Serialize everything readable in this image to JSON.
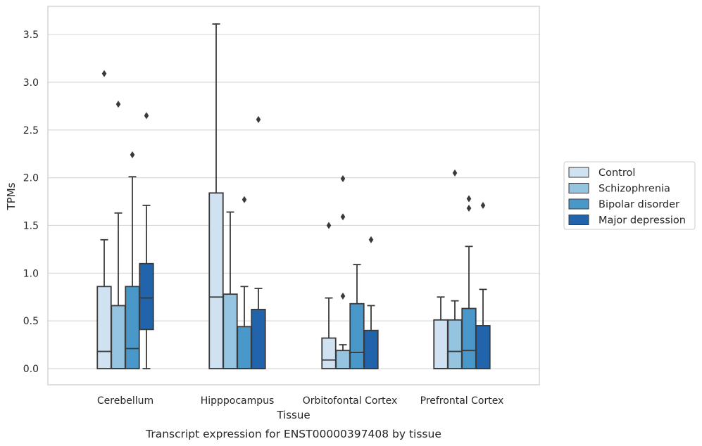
{
  "chart_data": {
    "type": "box",
    "caption": "Transcript expression for ENST00000397408 by tissue",
    "xlabel": "Tissue",
    "ylabel": "TPMs",
    "ylim": [
      -0.18,
      3.78
    ],
    "yticks": [
      "0.0",
      "0.5",
      "1.0",
      "1.5",
      "2.0",
      "2.5",
      "3.0",
      "3.5"
    ],
    "grid": "horizontal",
    "legend_position": "right",
    "categories": [
      "Cerebellum",
      "Hipppocampus",
      "Orbitofontal Cortex",
      "Prefrontal Cortex"
    ],
    "series": [
      {
        "name": "Control",
        "color": "#d0e1f2",
        "boxes": [
          {
            "whisker_low": 0,
            "q1": 0,
            "median": 0.18,
            "q3": 0.86,
            "whisker_high": 1.35,
            "outliers": [
              3.09
            ]
          },
          {
            "whisker_low": 0,
            "q1": 0,
            "median": 0.75,
            "q3": 1.84,
            "whisker_high": 3.61,
            "outliers": []
          },
          {
            "whisker_low": 0,
            "q1": 0,
            "median": 0.09,
            "q3": 0.32,
            "whisker_high": 0.74,
            "outliers": [
              1.5
            ]
          },
          {
            "whisker_low": 0,
            "q1": 0,
            "median": 0,
            "q3": 0.51,
            "whisker_high": 0.75,
            "outliers": []
          }
        ]
      },
      {
        "name": "Schizophrenia",
        "color": "#94c4df",
        "boxes": [
          {
            "whisker_low": 0,
            "q1": 0,
            "median": 0,
            "q3": 0.66,
            "whisker_high": 1.63,
            "outliers": [
              2.77
            ]
          },
          {
            "whisker_low": 0,
            "q1": 0,
            "median": 0,
            "q3": 0.78,
            "whisker_high": 1.64,
            "outliers": []
          },
          {
            "whisker_low": 0,
            "q1": 0,
            "median": 0,
            "q3": 0.19,
            "whisker_high": 0.25,
            "outliers": [
              1.99,
              1.59,
              0.76
            ]
          },
          {
            "whisker_low": 0,
            "q1": 0,
            "median": 0.18,
            "q3": 0.51,
            "whisker_high": 0.71,
            "outliers": [
              2.05
            ]
          }
        ]
      },
      {
        "name": "Bipolar disorder",
        "color": "#4a98c9",
        "boxes": [
          {
            "whisker_low": 0,
            "q1": 0,
            "median": 0.21,
            "q3": 0.86,
            "whisker_high": 2.01,
            "outliers": [
              2.24
            ]
          },
          {
            "whisker_low": 0,
            "q1": 0,
            "median": 0,
            "q3": 0.44,
            "whisker_high": 0.86,
            "outliers": [
              1.77
            ]
          },
          {
            "whisker_low": 0,
            "q1": 0,
            "median": 0.17,
            "q3": 0.68,
            "whisker_high": 1.09,
            "outliers": []
          },
          {
            "whisker_low": 0,
            "q1": 0,
            "median": 0.19,
            "q3": 0.63,
            "whisker_high": 1.28,
            "outliers": [
              1.78,
              1.68
            ]
          }
        ]
      },
      {
        "name": "Major depression",
        "color": "#2164ab",
        "boxes": [
          {
            "whisker_low": 0,
            "q1": 0.41,
            "median": 0.74,
            "q3": 1.1,
            "whisker_high": 1.71,
            "outliers": [
              2.65
            ]
          },
          {
            "whisker_low": 0,
            "q1": 0,
            "median": 0,
            "q3": 0.62,
            "whisker_high": 0.84,
            "outliers": [
              2.61
            ]
          },
          {
            "whisker_low": 0,
            "q1": 0,
            "median": 0,
            "q3": 0.4,
            "whisker_high": 0.66,
            "outliers": [
              1.35
            ]
          },
          {
            "whisker_low": 0,
            "q1": 0,
            "median": 0,
            "q3": 0.45,
            "whisker_high": 0.83,
            "outliers": [
              1.71
            ]
          }
        ]
      }
    ]
  }
}
